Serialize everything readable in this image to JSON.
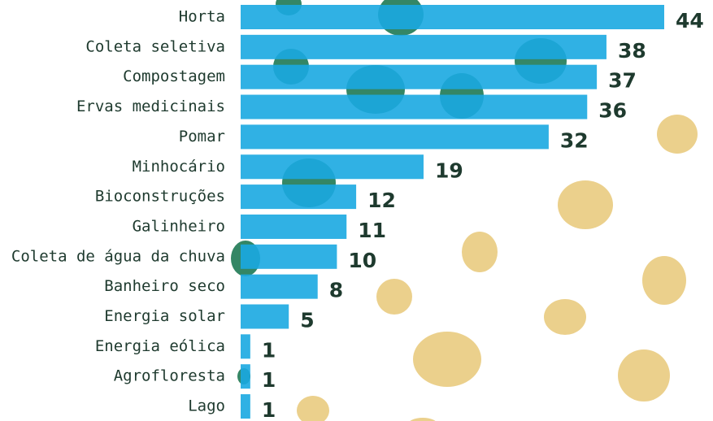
{
  "chart_data": {
    "type": "bar",
    "orientation": "horizontal",
    "color": "#1aa9e1",
    "categories": [
      "Horta",
      "Coleta seletiva",
      "Compostagem",
      "Ervas medicinais",
      "Pomar",
      "Minhocário",
      "Bioconstruções",
      "Galinheiro",
      "Coleta de água da chuva",
      "Banheiro seco",
      "Energia solar",
      "Energia eólica",
      "Agrofloresta",
      "Lago"
    ],
    "values": [
      44,
      38,
      37,
      36,
      32,
      19,
      12,
      11,
      10,
      8,
      5,
      1,
      1,
      1
    ]
  }
}
